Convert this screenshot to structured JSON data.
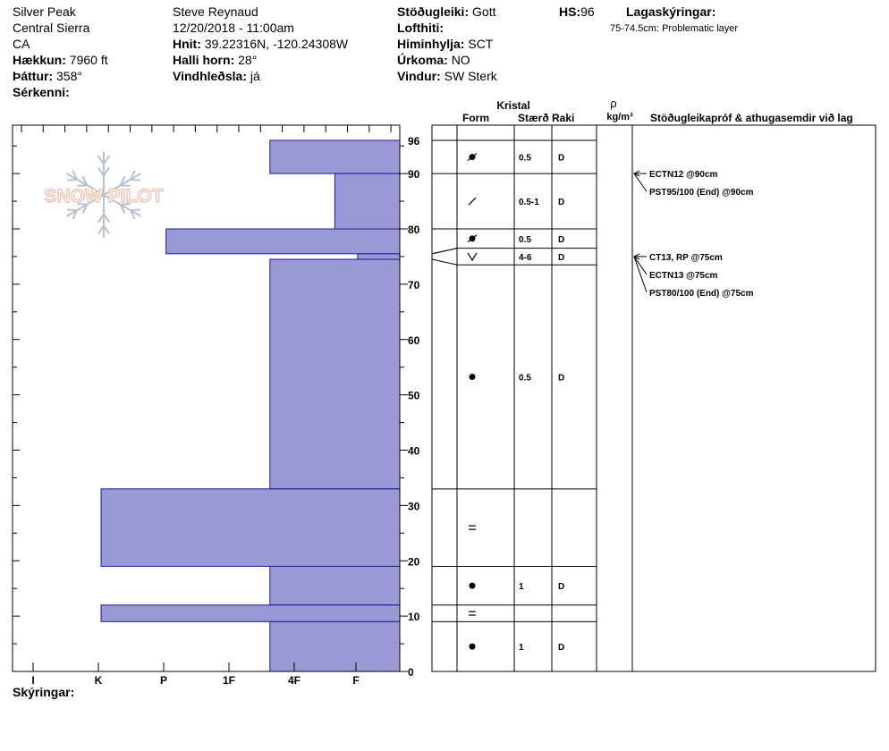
{
  "header": {
    "location": "Silver Peak",
    "range": "Central Sierra",
    "state": "CA",
    "elevation_label": "Hækkun:",
    "elevation_value": "7960 ft",
    "aspect_label": "Þáttur:",
    "aspect_value": "358°",
    "specifics_label": "Sérkenni:",
    "observer": "Steve Reynaud",
    "datetime": "12/20/2018 - 11:00am",
    "coords_label": "Hnit:",
    "coords_value": "39.22316N, -120.24308W",
    "slope_label": "Halli horn:",
    "slope_value": "28°",
    "wind_loading_label": "Vindhleðsla:",
    "wind_loading_value": "já",
    "stability_label": "Stöðugleiki:",
    "stability_value": "Gott",
    "air_temp_label": "Lofthiti:",
    "sky_label": "Himinhylja:",
    "sky_value": "SCT",
    "precip_label": "Úrkoma:",
    "precip_value": "NO",
    "wind_label": "Vindur:",
    "wind_value": "SW Sterk",
    "hs_label": "HS:",
    "hs_value": "96",
    "layer_notes_label": "Lagaskýringar:",
    "layer_note": "75-74.5cm: Problematic layer",
    "notes_label": "Skýringar:"
  },
  "logo_text": "SNOW PILOT",
  "columns": {
    "crystal": "Kristal",
    "form": "Form",
    "size": "Stærð",
    "moisture": "Raki",
    "rho": "ρ",
    "density_unit": "kg/m³",
    "tests": "Stöðugleikapróf & athugasemdir við lag"
  },
  "colors": {
    "hardness_fill": "#9999d6",
    "hardness_stroke": "#1a1a99"
  },
  "chart_data": {
    "type": "bar",
    "title": "",
    "xlabel": "",
    "ylabel": "",
    "orientation": "horizontal",
    "hardness_ticks": [
      "I",
      "K",
      "P",
      "1F",
      "4F",
      "F"
    ],
    "ylim": [
      0,
      96
    ],
    "yticks": [
      0,
      10,
      20,
      30,
      40,
      50,
      60,
      70,
      80,
      90,
      96
    ],
    "layers": [
      {
        "top": 96,
        "bottom": 90,
        "hardness": 2.0
      },
      {
        "top": 90,
        "bottom": 80,
        "hardness": 1.0
      },
      {
        "top": 80,
        "bottom": 75.5,
        "hardness": 3.6
      },
      {
        "top": 75.5,
        "bottom": 74.5,
        "hardness": 0.65
      },
      {
        "top": 74.5,
        "bottom": 33,
        "hardness": 2.0
      },
      {
        "top": 33,
        "bottom": 19,
        "hardness": 4.6
      },
      {
        "top": 19,
        "bottom": 12,
        "hardness": 2.0
      },
      {
        "top": 12,
        "bottom": 9,
        "hardness": 4.6
      },
      {
        "top": 9,
        "bottom": 0,
        "hardness": 2.0
      }
    ],
    "grains": [
      {
        "top": 96,
        "bottom": 90,
        "form": "rounding-faceted",
        "size": "0.5",
        "moisture": "D"
      },
      {
        "top": 90,
        "bottom": 80,
        "form": "decomposing",
        "size": "0.5-1",
        "moisture": "D"
      },
      {
        "top": 80,
        "bottom": 76.5,
        "form": "rounding-faceted",
        "size": "0.5",
        "moisture": "D"
      },
      {
        "top": 76.5,
        "bottom": 73.5,
        "form": "depth-hoar",
        "size": "4-6",
        "moisture": "D"
      },
      {
        "top": 73.5,
        "bottom": 33,
        "form": "rounded",
        "size": "0.5",
        "moisture": "D"
      },
      {
        "top": 33,
        "bottom": 19,
        "form": "melt-freeze-crust",
        "size": "",
        "moisture": ""
      },
      {
        "top": 19,
        "bottom": 12,
        "form": "rounded",
        "size": "1",
        "moisture": "D"
      },
      {
        "top": 12,
        "bottom": 9,
        "form": "melt-freeze-crust",
        "size": "",
        "moisture": ""
      },
      {
        "top": 9,
        "bottom": 0,
        "form": "rounded",
        "size": "1",
        "moisture": "D"
      }
    ],
    "tests": [
      {
        "depth": 90,
        "labels": [
          "ECTN12 @90cm",
          "PST95/100 (End) @90cm"
        ]
      },
      {
        "depth": 75,
        "labels": [
          "CT13, RP @75cm",
          "ECTN13 @75cm",
          "PST80/100 (End) @75cm"
        ]
      }
    ]
  }
}
